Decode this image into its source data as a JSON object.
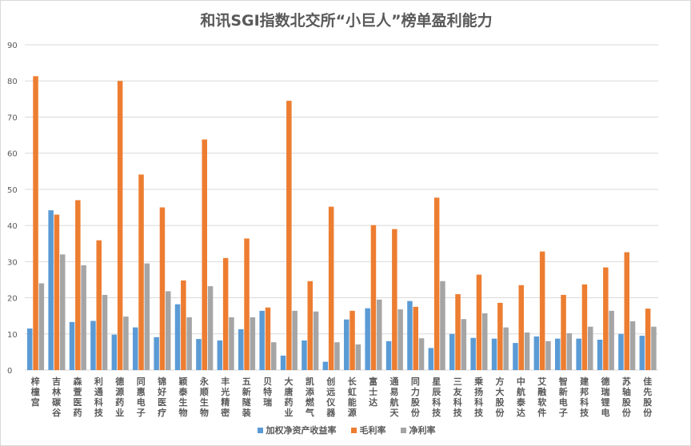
{
  "chart_data": {
    "type": "bar",
    "title": "和讯SGI指数北交所“小巨人”榜单盈利能力",
    "categories": [
      "梓橦宫",
      "吉林碳谷",
      "森萱医药",
      "利通科技",
      "德源药业",
      "同惠电子",
      "锦好医疗",
      "颖泰生物",
      "永顺生物",
      "丰光精密",
      "五新隧装",
      "贝特瑞",
      "大唐药业",
      "凯添燃气",
      "创远仪器",
      "长虹能源",
      "富士达",
      "通易航天",
      "同力股份",
      "星辰科技",
      "三友科技",
      "乘扬科技",
      "方大股份",
      "中航泰达",
      "艾融软件",
      "智新电子",
      "建邦科技",
      "德瑞锂电",
      "苏轴股份",
      "佳先股份"
    ],
    "series": [
      {
        "name": "加权净资产收益率",
        "color": "#5b9bd5",
        "values": [
          11.5,
          44.2,
          13.3,
          13.6,
          9.8,
          11.8,
          9.1,
          18.2,
          8.6,
          8.2,
          11.3,
          16.4,
          4.0,
          8.2,
          2.3,
          14.0,
          17.1,
          8.0,
          19.1,
          6.1,
          10.0,
          8.9,
          8.7,
          7.5,
          9.3,
          8.7,
          8.7,
          8.4,
          10.0,
          9.5
        ]
      },
      {
        "name": "毛利率",
        "color": "#ed7d31",
        "values": [
          81.3,
          43.0,
          47.0,
          35.9,
          80.0,
          54.1,
          45.0,
          24.8,
          63.8,
          31.0,
          36.4,
          17.3,
          74.5,
          24.6,
          45.2,
          16.4,
          40.1,
          39.0,
          17.5,
          47.7,
          21.0,
          26.4,
          18.6,
          23.5,
          32.8,
          20.8,
          23.7,
          28.4,
          32.6,
          17.0
        ]
      },
      {
        "name": "净利率",
        "color": "#a5a5a5",
        "values": [
          24.0,
          32.0,
          29.0,
          20.8,
          14.8,
          29.5,
          21.8,
          14.6,
          23.2,
          14.6,
          14.6,
          7.7,
          16.4,
          16.2,
          7.7,
          7.1,
          19.5,
          16.8,
          8.8,
          24.6,
          14.1,
          15.7,
          11.8,
          10.4,
          8.0,
          10.2,
          12.0,
          16.4,
          13.5,
          12.0
        ]
      }
    ],
    "ylim": [
      0,
      90
    ],
    "yticks": [
      0,
      10,
      20,
      30,
      40,
      50,
      60,
      70,
      80,
      90
    ],
    "grid": true,
    "legend": "bottom"
  }
}
